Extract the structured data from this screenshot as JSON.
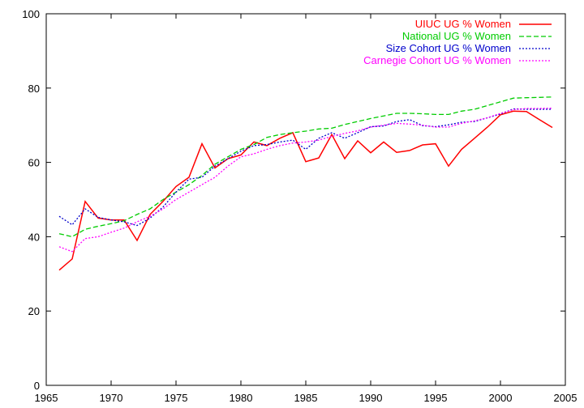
{
  "chart_data": {
    "type": "line",
    "title": "",
    "xlabel": "",
    "ylabel": "",
    "xlim": [
      1965,
      2005
    ],
    "ylim": [
      0,
      100
    ],
    "xticks": [
      1965,
      1970,
      1975,
      1980,
      1985,
      1990,
      1995,
      2000,
      2005
    ],
    "yticks": [
      0,
      20,
      40,
      60,
      80,
      100
    ],
    "grid": false,
    "legend_position": "top-right",
    "x": [
      1966,
      1967,
      1968,
      1969,
      1970,
      1971,
      1972,
      1973,
      1974,
      1975,
      1976,
      1977,
      1978,
      1979,
      1980,
      1981,
      1982,
      1983,
      1984,
      1985,
      1986,
      1987,
      1988,
      1989,
      1990,
      1991,
      1992,
      1993,
      1994,
      1995,
      1996,
      1997,
      1998,
      1999,
      2000,
      2001,
      2002,
      2003,
      2004
    ],
    "series": [
      {
        "name": "UIUC UG % Women",
        "color": "#ff0000",
        "style": "solid",
        "values": [
          31,
          34,
          49.5,
          45,
          44.5,
          44.5,
          39,
          46,
          49.5,
          53.5,
          56,
          65,
          58.5,
          61,
          62,
          65.5,
          64.5,
          66.5,
          68,
          60.2,
          61.2,
          67.5,
          61,
          65.8,
          62.6,
          65.5,
          62.7,
          63.2,
          64.7,
          65,
          59,
          63.5,
          66.5,
          69.5,
          72.8,
          73.8,
          73.7,
          71.5,
          69.4
        ]
      },
      {
        "name": "National UG % Women",
        "color": "#00cc00",
        "style": "dashed",
        "values": [
          40.8,
          40,
          42,
          42.8,
          43.5,
          44.3,
          46,
          47.5,
          50,
          52,
          54,
          56.5,
          59.5,
          61.5,
          63.5,
          64.8,
          66.7,
          67.5,
          68,
          68.4,
          69,
          69.2,
          70.2,
          71,
          71.8,
          72.5,
          73.2,
          73.2,
          73.1,
          72.9,
          72.9,
          73.8,
          74.3,
          75.3,
          76.3,
          77.3,
          77.4,
          77.5,
          77.6
        ]
      },
      {
        "name": "Size Cohort UG % Women",
        "color": "#0000cc",
        "style": "dotted",
        "values": [
          45.5,
          43.2,
          47.5,
          45.2,
          44.5,
          44,
          43,
          45,
          48,
          52,
          55.5,
          56,
          59,
          61,
          63,
          64.5,
          64.8,
          65.5,
          66,
          63.5,
          66.5,
          68,
          66.5,
          68,
          69.6,
          69.8,
          71,
          71.5,
          69.9,
          69.6,
          70.1,
          70.8,
          71,
          72,
          73,
          74.4,
          74.3,
          74.3,
          74.3
        ]
      },
      {
        "name": "Carnegie Cohort UG % Women",
        "color": "#ff00ff",
        "style": "dotted",
        "values": [
          37.3,
          36,
          39.5,
          40,
          41.2,
          42.3,
          44,
          45.5,
          47.5,
          50,
          52,
          54,
          56,
          59,
          61.5,
          62.3,
          63.5,
          64.5,
          65.2,
          65.5,
          66,
          67,
          67.8,
          68.5,
          69.5,
          70,
          70.5,
          70.3,
          70,
          69.5,
          69.5,
          70.5,
          71.2,
          72,
          73.2,
          74.2,
          74.5,
          74.5,
          74.6
        ]
      }
    ]
  }
}
